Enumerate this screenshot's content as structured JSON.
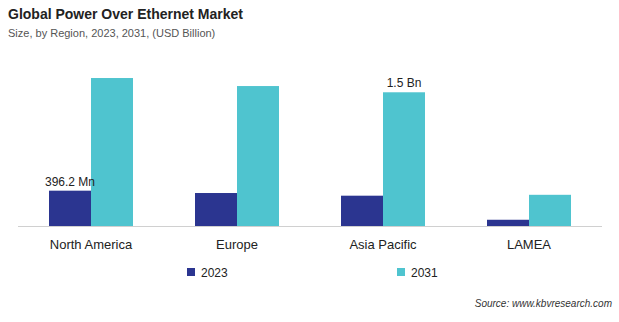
{
  "chart_data": {
    "type": "bar",
    "title": "Global Power Over Ethernet Market",
    "subtitle": "Size, by Region, 2023, 2031, (USD Billion)",
    "source": "Source: www.kbvresearch.com",
    "categories": [
      "North America",
      "Europe",
      "Asia Pacific",
      "LAMEA"
    ],
    "series": [
      {
        "name": "2023",
        "color": "#2b3590",
        "values": [
          0.3962,
          0.37,
          0.34,
          0.07
        ],
        "value_labels": [
          "396.2 Mn",
          null,
          null,
          null
        ]
      },
      {
        "name": "2031",
        "color": "#4fc4cf",
        "values": [
          1.66,
          1.57,
          1.5,
          0.35
        ],
        "value_labels": [
          null,
          null,
          "1.5 Bn",
          null
        ]
      }
    ],
    "ylim": [
      0,
      1.75
    ],
    "tick_labels": "x",
    "grid": false,
    "legend": "bottom"
  }
}
